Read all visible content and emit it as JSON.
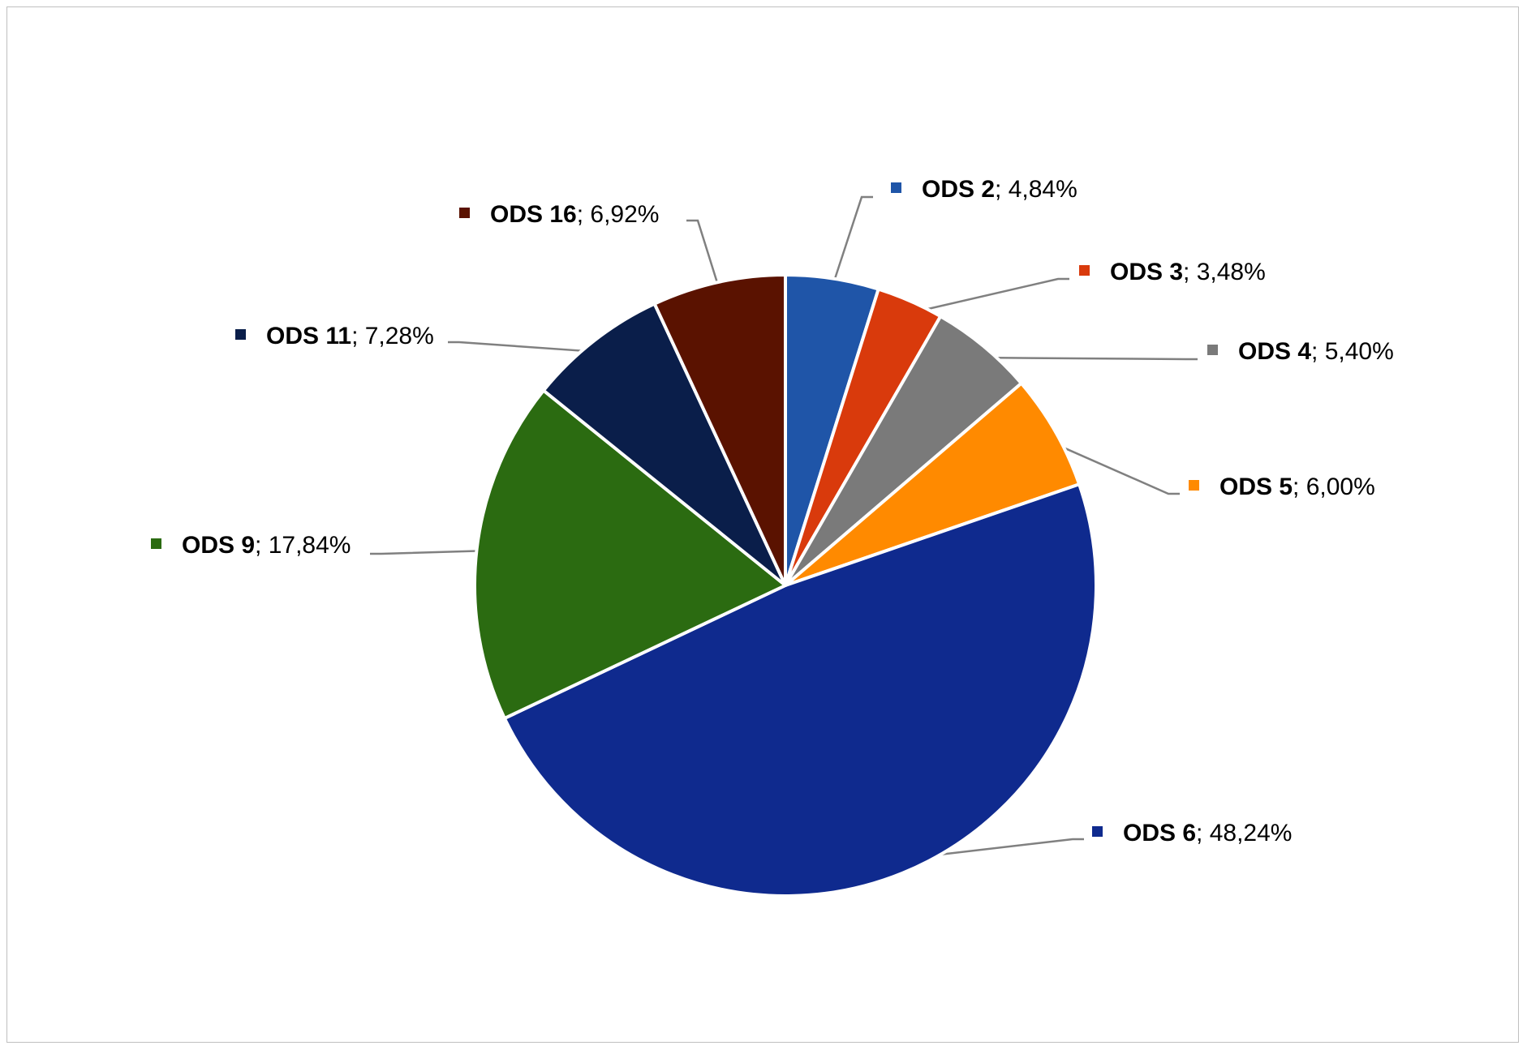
{
  "chart_data": {
    "type": "pie",
    "title": "",
    "label_separator": "; ",
    "legend": "none",
    "start_angle_deg": 0,
    "direction": "clockwise",
    "slices": [
      {
        "name": "ODS 2",
        "value": 4.84,
        "label_value": "4,84%",
        "color": "#1f55a8"
      },
      {
        "name": "ODS 3",
        "value": 3.48,
        "label_value": "3,48%",
        "color": "#d93a0c"
      },
      {
        "name": "ODS 4",
        "value": 5.4,
        "label_value": "5,40%",
        "color": "#7a7a7a"
      },
      {
        "name": "ODS 5",
        "value": 6.0,
        "label_value": "6,00%",
        "color": "#ff8a00"
      },
      {
        "name": "ODS 6",
        "value": 48.24,
        "label_value": "48,24%",
        "color": "#0f2a8e"
      },
      {
        "name": "ODS 9",
        "value": 17.84,
        "label_value": "17,84%",
        "color": "#2b6b11"
      },
      {
        "name": "ODS 11",
        "value": 7.28,
        "label_value": "7,28%",
        "color": "#0a1e4a"
      },
      {
        "name": "ODS 16",
        "value": 6.92,
        "label_value": "6,92%",
        "color": "#5a1200"
      }
    ]
  }
}
